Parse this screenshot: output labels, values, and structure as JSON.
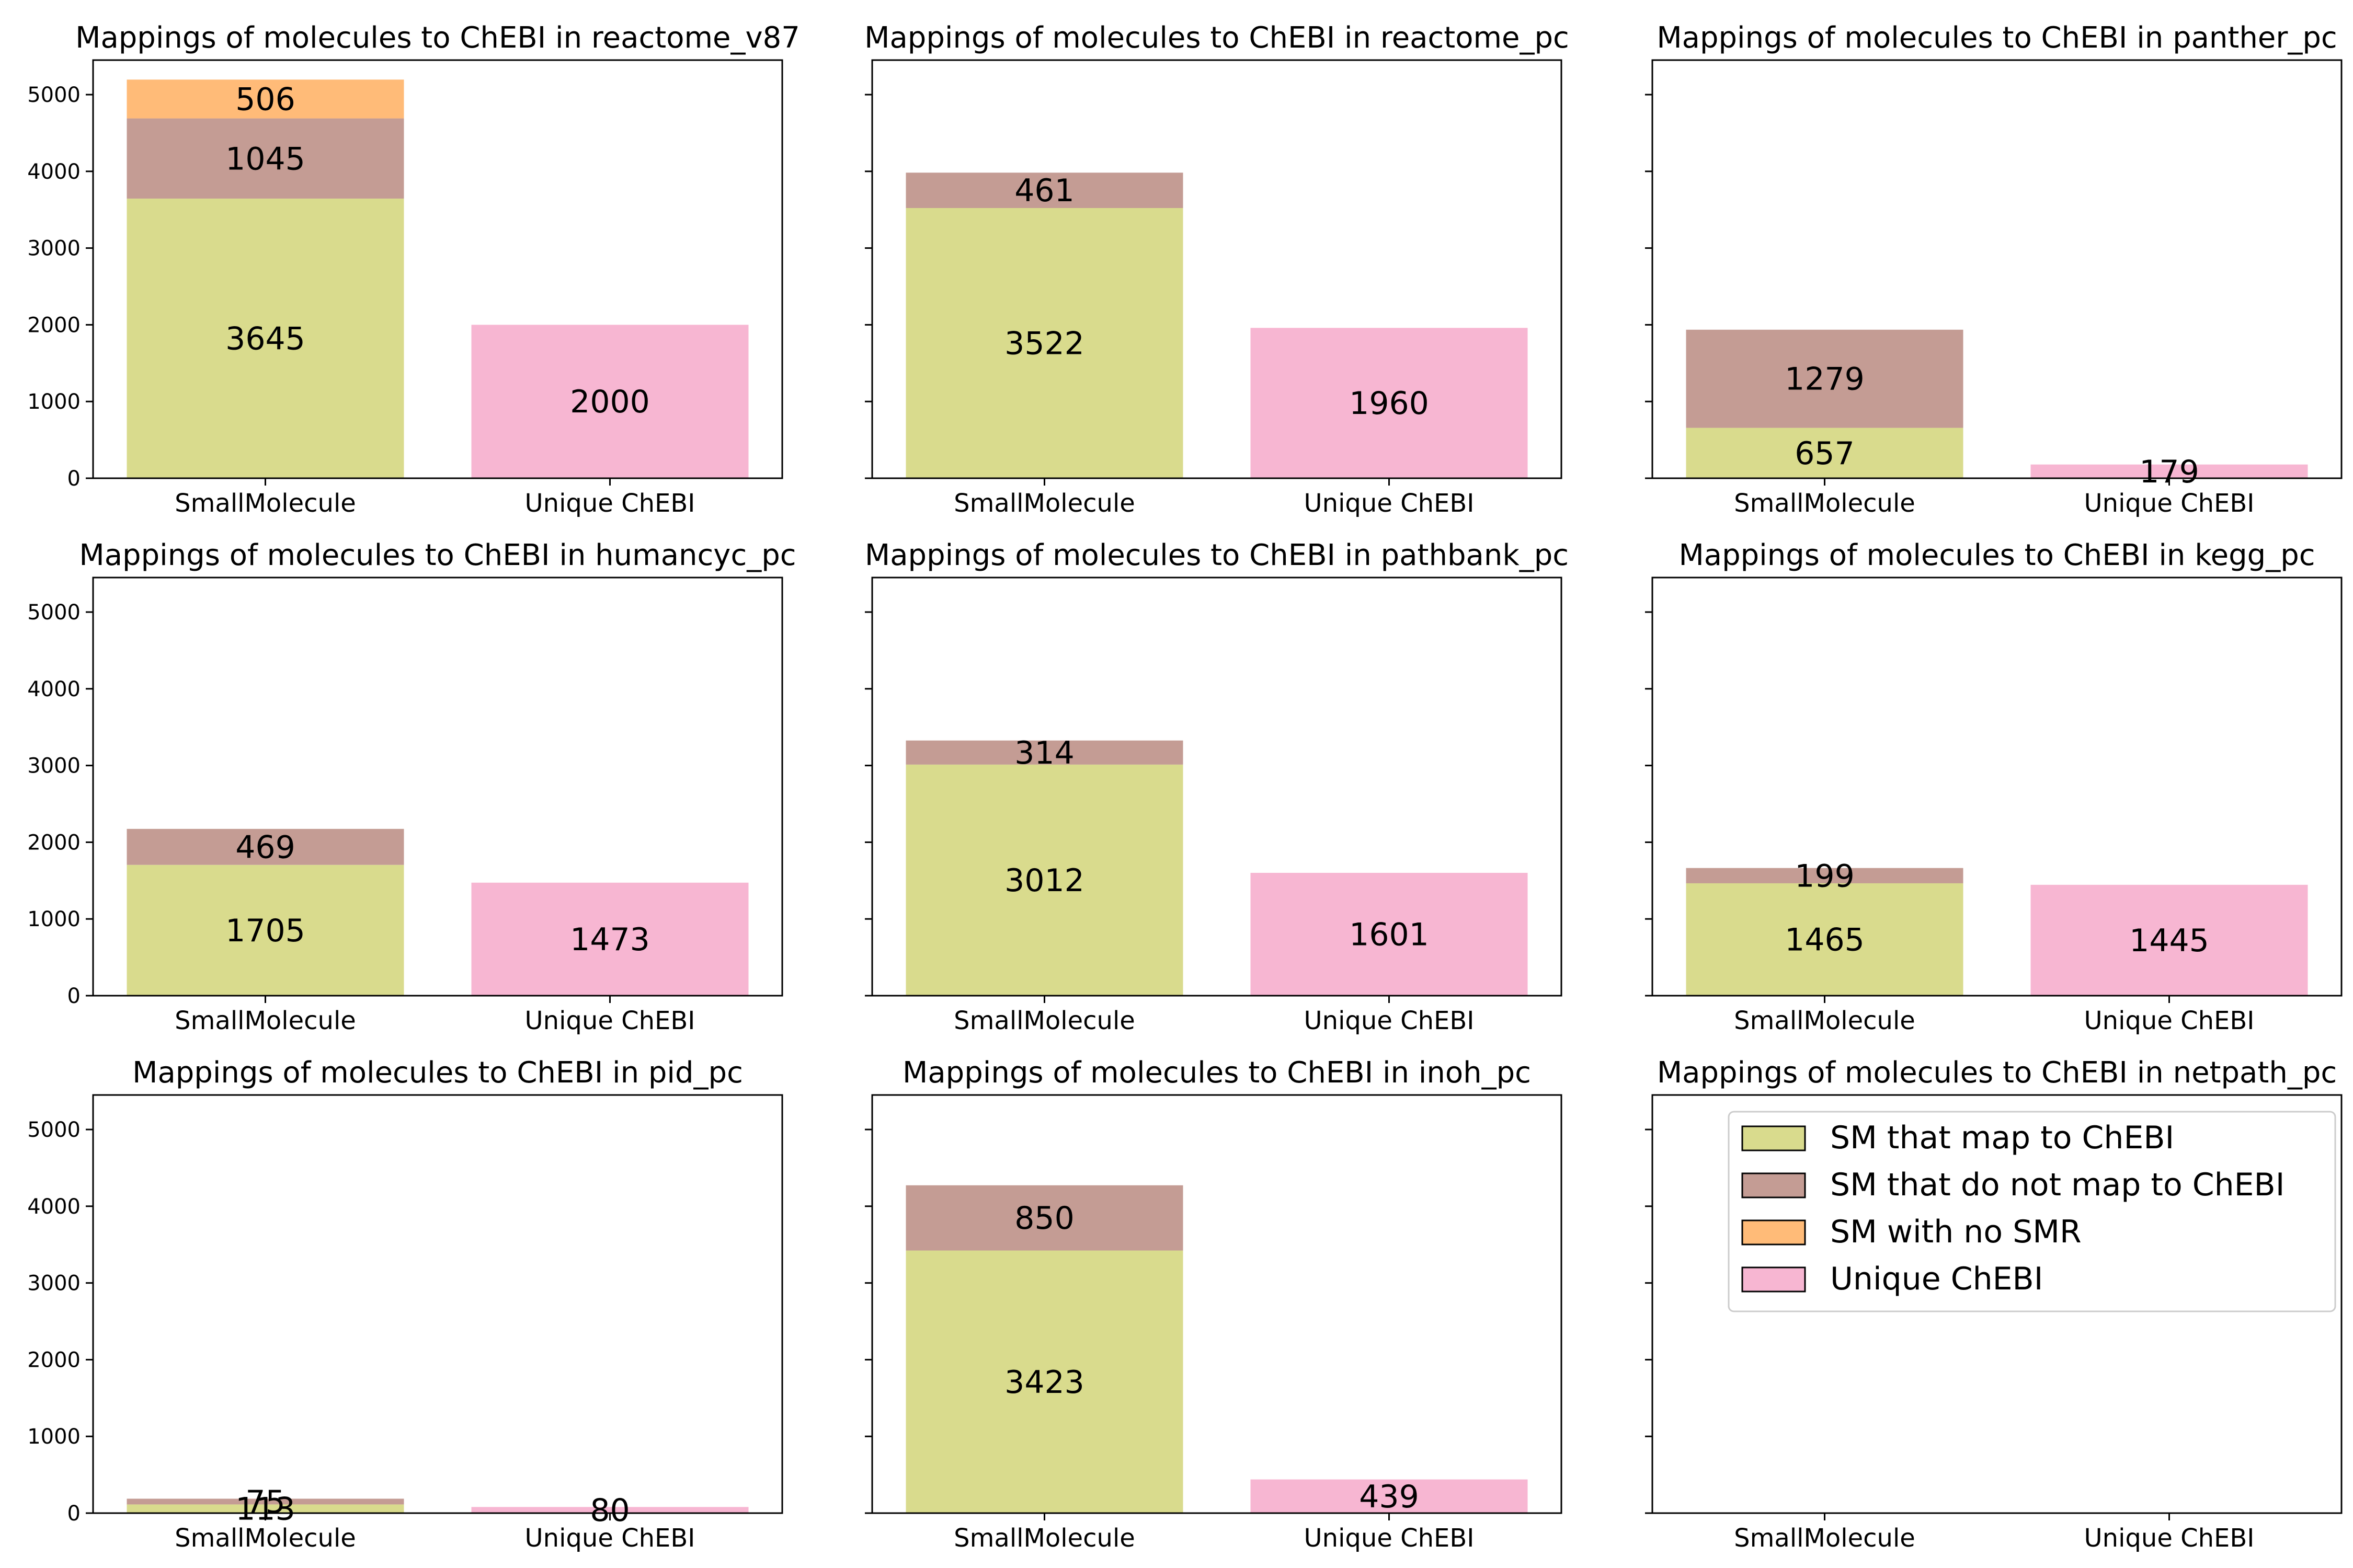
{
  "chart_data": [
    {
      "type": "bar",
      "title": "Mappings of molecules to ChEBI in reactome_v87",
      "categories": [
        "SmallMolecule",
        "Unique ChEBI"
      ],
      "series": [
        {
          "name": "SM that map to ChEBI",
          "values": [
            3645,
            0
          ]
        },
        {
          "name": "SM that do not map to ChEBI",
          "values": [
            1045,
            0
          ]
        },
        {
          "name": "SM with no SMR",
          "values": [
            506,
            0
          ]
        },
        {
          "name": "Unique ChEBI",
          "values": [
            0,
            2000
          ]
        }
      ],
      "ylim": [
        0,
        5450
      ],
      "yticks": [
        0,
        1000,
        2000,
        3000,
        4000,
        5000
      ]
    },
    {
      "type": "bar",
      "title": "Mappings of molecules to ChEBI in reactome_pc",
      "categories": [
        "SmallMolecule",
        "Unique ChEBI"
      ],
      "series": [
        {
          "name": "SM that map to ChEBI",
          "values": [
            3522,
            0
          ]
        },
        {
          "name": "SM that do not map to ChEBI",
          "values": [
            461,
            0
          ]
        },
        {
          "name": "SM with no SMR",
          "values": [
            0,
            0
          ]
        },
        {
          "name": "Unique ChEBI",
          "values": [
            0,
            1960
          ]
        }
      ],
      "ylim": [
        0,
        5450
      ]
    },
    {
      "type": "bar",
      "title": "Mappings of molecules to ChEBI in panther_pc",
      "categories": [
        "SmallMolecule",
        "Unique ChEBI"
      ],
      "series": [
        {
          "name": "SM that map to ChEBI",
          "values": [
            657,
            0
          ]
        },
        {
          "name": "SM that do not map to ChEBI",
          "values": [
            1279,
            0
          ]
        },
        {
          "name": "SM with no SMR",
          "values": [
            0,
            0
          ]
        },
        {
          "name": "Unique ChEBI",
          "values": [
            0,
            179
          ]
        }
      ],
      "ylim": [
        0,
        5450
      ]
    },
    {
      "type": "bar",
      "title": "Mappings of molecules to ChEBI in humancyc_pc",
      "categories": [
        "SmallMolecule",
        "Unique ChEBI"
      ],
      "series": [
        {
          "name": "SM that map to ChEBI",
          "values": [
            1705,
            0
          ]
        },
        {
          "name": "SM that do not map to ChEBI",
          "values": [
            469,
            0
          ]
        },
        {
          "name": "SM with no SMR",
          "values": [
            0,
            0
          ]
        },
        {
          "name": "Unique ChEBI",
          "values": [
            0,
            1473
          ]
        }
      ],
      "ylim": [
        0,
        5450
      ],
      "yticks": [
        0,
        1000,
        2000,
        3000,
        4000,
        5000
      ]
    },
    {
      "type": "bar",
      "title": "Mappings of molecules to ChEBI in pathbank_pc",
      "categories": [
        "SmallMolecule",
        "Unique ChEBI"
      ],
      "series": [
        {
          "name": "SM that map to ChEBI",
          "values": [
            3012,
            0
          ]
        },
        {
          "name": "SM that do not map to ChEBI",
          "values": [
            314,
            0
          ]
        },
        {
          "name": "SM with no SMR",
          "values": [
            0,
            0
          ]
        },
        {
          "name": "Unique ChEBI",
          "values": [
            0,
            1601
          ]
        }
      ],
      "ylim": [
        0,
        5450
      ]
    },
    {
      "type": "bar",
      "title": "Mappings of molecules to ChEBI in kegg_pc",
      "categories": [
        "SmallMolecule",
        "Unique ChEBI"
      ],
      "series": [
        {
          "name": "SM that map to ChEBI",
          "values": [
            1465,
            0
          ]
        },
        {
          "name": "SM that do not map to ChEBI",
          "values": [
            199,
            0
          ]
        },
        {
          "name": "SM with no SMR",
          "values": [
            0,
            0
          ]
        },
        {
          "name": "Unique ChEBI",
          "values": [
            0,
            1445
          ]
        }
      ],
      "ylim": [
        0,
        5450
      ]
    },
    {
      "type": "bar",
      "title": "Mappings of molecules to ChEBI in pid_pc",
      "categories": [
        "SmallMolecule",
        "Unique ChEBI"
      ],
      "series": [
        {
          "name": "SM that map to ChEBI",
          "values": [
            113,
            0
          ]
        },
        {
          "name": "SM that do not map to ChEBI",
          "values": [
            75,
            0
          ]
        },
        {
          "name": "SM with no SMR",
          "values": [
            0,
            0
          ]
        },
        {
          "name": "Unique ChEBI",
          "values": [
            0,
            80
          ]
        }
      ],
      "ylim": [
        0,
        5450
      ],
      "yticks": [
        0,
        1000,
        2000,
        3000,
        4000,
        5000
      ]
    },
    {
      "type": "bar",
      "title": "Mappings of molecules to ChEBI in inoh_pc",
      "categories": [
        "SmallMolecule",
        "Unique ChEBI"
      ],
      "series": [
        {
          "name": "SM that map to ChEBI",
          "values": [
            3423,
            0
          ]
        },
        {
          "name": "SM that do not map to ChEBI",
          "values": [
            850,
            0
          ]
        },
        {
          "name": "SM with no SMR",
          "values": [
            0,
            0
          ]
        },
        {
          "name": "Unique ChEBI",
          "values": [
            0,
            439
          ]
        }
      ],
      "ylim": [
        0,
        5450
      ]
    },
    {
      "type": "bar",
      "title": "Mappings of molecules to ChEBI in netpath_pc",
      "categories": [
        "SmallMolecule",
        "Unique ChEBI"
      ],
      "series": [
        {
          "name": "SM that map to ChEBI",
          "values": [
            0,
            0
          ]
        },
        {
          "name": "SM that do not map to ChEBI",
          "values": [
            0,
            0
          ]
        },
        {
          "name": "SM with no SMR",
          "values": [
            0,
            0
          ]
        },
        {
          "name": "Unique ChEBI",
          "values": [
            0,
            0
          ]
        }
      ],
      "ylim": [
        0,
        5450
      ],
      "legend_position": "upper-right"
    }
  ],
  "legend": [
    {
      "label": "SM that map to ChEBI",
      "color": "#d9db8d"
    },
    {
      "label": "SM that do not map to ChEBI",
      "color": "#c49c94"
    },
    {
      "label": "SM with no SMR",
      "color": "#ffbb78"
    },
    {
      "label": "Unique ChEBI",
      "color": "#f7b6d2"
    }
  ]
}
